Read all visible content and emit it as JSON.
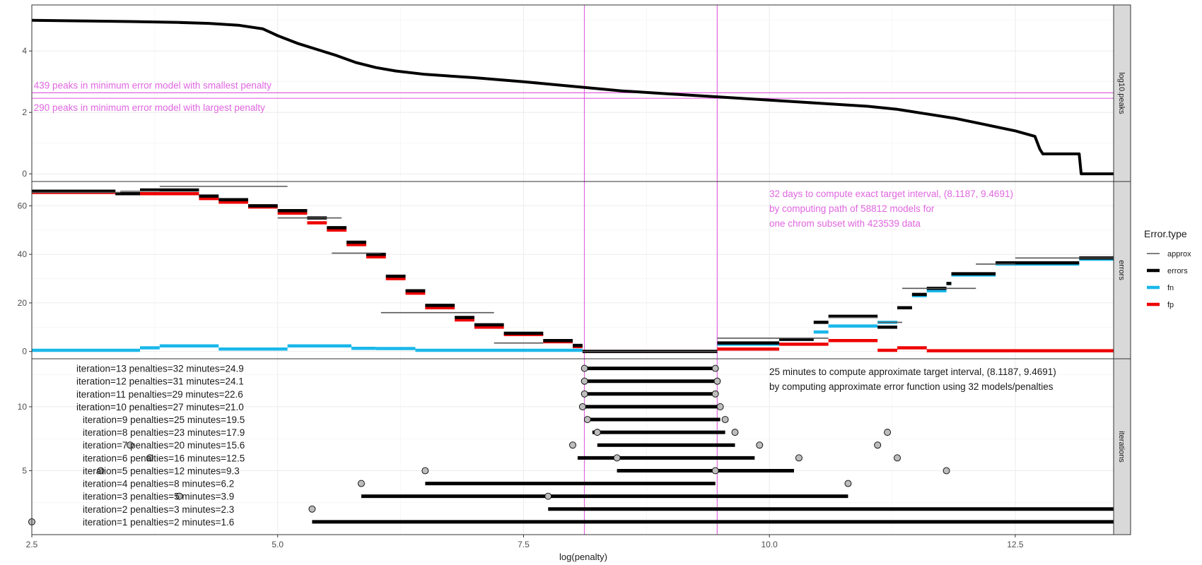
{
  "chart_data": {
    "type": "line",
    "x_axis": {
      "label": "log(penalty)",
      "range": [
        2.5,
        13.5
      ],
      "ticks": [
        2.5,
        5.0,
        7.5,
        10.0,
        12.5
      ],
      "tick_labels": [
        "2.5",
        "5.0",
        "7.5",
        "10.0",
        "12.5"
      ]
    },
    "vlines": [
      8.1187,
      9.4691
    ],
    "colors": {
      "approx": "#555555",
      "errors": "#000000",
      "fn": "#1ab8ea",
      "fp": "#ee0000",
      "annotation": "#e066e0",
      "point_fill": "#bdbdbd"
    },
    "legend": {
      "title": "Error.type",
      "placement": "right",
      "items": [
        {
          "key": "approx",
          "label": "approx"
        },
        {
          "key": "errors",
          "label": "errors"
        },
        {
          "key": "fn",
          "label": "fn"
        },
        {
          "key": "fp",
          "label": "fp"
        }
      ]
    },
    "panels": [
      {
        "strip": "log10.peaks",
        "ylim": [
          -0.25,
          5.5
        ],
        "yticks": [
          0,
          2,
          4
        ],
        "ytick_labels": [
          "0",
          "2",
          "4"
        ],
        "hlines": [
          2.64,
          2.46
        ],
        "annotations": [
          {
            "x": 2.52,
            "y": 2.64,
            "text": "439 peaks in minimum error model with smallest penalty"
          },
          {
            "x": 2.52,
            "y": 2.46,
            "text": "290 peaks in minimum error model with largest penalty"
          }
        ],
        "curve": [
          [
            2.5,
            5.0
          ],
          [
            3.0,
            4.98
          ],
          [
            3.5,
            4.96
          ],
          [
            4.0,
            4.93
          ],
          [
            4.3,
            4.9
          ],
          [
            4.6,
            4.84
          ],
          [
            4.85,
            4.72
          ],
          [
            5.0,
            4.5
          ],
          [
            5.2,
            4.25
          ],
          [
            5.4,
            4.05
          ],
          [
            5.6,
            3.85
          ],
          [
            5.8,
            3.62
          ],
          [
            6.0,
            3.46
          ],
          [
            6.2,
            3.35
          ],
          [
            6.5,
            3.24
          ],
          [
            7.0,
            3.13
          ],
          [
            7.5,
            3.0
          ],
          [
            8.0,
            2.85
          ],
          [
            8.5,
            2.7
          ],
          [
            9.0,
            2.6
          ],
          [
            9.5,
            2.5
          ],
          [
            10.0,
            2.4
          ],
          [
            10.5,
            2.3
          ],
          [
            11.0,
            2.2
          ],
          [
            11.3,
            2.1
          ],
          [
            11.6,
            1.95
          ],
          [
            11.9,
            1.8
          ],
          [
            12.2,
            1.6
          ],
          [
            12.5,
            1.4
          ],
          [
            12.7,
            1.22
          ],
          [
            12.75,
            0.8
          ],
          [
            12.78,
            0.65
          ],
          [
            13.15,
            0.65
          ],
          [
            13.17,
            0.0
          ],
          [
            13.5,
            0.0
          ]
        ]
      },
      {
        "strip": "errors",
        "ylim": [
          -3,
          70
        ],
        "yticks": [
          0,
          20,
          40,
          60
        ],
        "ytick_labels": [
          "0",
          "20",
          "40",
          "60"
        ],
        "note": [
          "32 days to compute exact target interval, (8.1187, 9.4691)",
          "by computing path of 58812 models for",
          "one chrom subset with 423539 data"
        ],
        "fn": [
          [
            2.5,
            3.6,
            0.5
          ],
          [
            3.6,
            3.8,
            1.5
          ],
          [
            3.8,
            4.4,
            2.3
          ],
          [
            4.4,
            5.1,
            1.0
          ],
          [
            5.1,
            5.75,
            2.3
          ],
          [
            5.75,
            6.0,
            1.3
          ],
          [
            6.0,
            6.4,
            1.2
          ],
          [
            6.4,
            8.1,
            0.5
          ],
          [
            8.1,
            9.47,
            0.0
          ],
          [
            9.47,
            10.1,
            3.0
          ],
          [
            10.1,
            10.45,
            5.0
          ],
          [
            10.45,
            10.6,
            8.0
          ],
          [
            10.6,
            11.1,
            10.5
          ],
          [
            11.1,
            11.3,
            12.0
          ],
          [
            11.3,
            11.45,
            18.0
          ],
          [
            11.45,
            11.6,
            23.0
          ],
          [
            11.6,
            11.8,
            25.0
          ],
          [
            11.8,
            11.85,
            28.0
          ],
          [
            11.85,
            12.3,
            31.5
          ],
          [
            12.3,
            13.15,
            36.0
          ],
          [
            13.15,
            13.5,
            38.0
          ]
        ],
        "fp": [
          [
            2.5,
            3.35,
            65.5
          ],
          [
            3.35,
            3.6,
            65.0
          ],
          [
            3.6,
            4.2,
            65.0
          ],
          [
            4.2,
            4.4,
            63.0
          ],
          [
            4.4,
            4.7,
            61.5
          ],
          [
            4.7,
            5.0,
            59.5
          ],
          [
            5.0,
            5.3,
            57.0
          ],
          [
            5.3,
            5.5,
            53.0
          ],
          [
            5.5,
            5.7,
            50.0
          ],
          [
            5.7,
            5.9,
            44.0
          ],
          [
            5.9,
            6.1,
            39.0
          ],
          [
            6.1,
            6.3,
            30.0
          ],
          [
            6.3,
            6.5,
            24.0
          ],
          [
            6.5,
            6.8,
            18.0
          ],
          [
            6.8,
            7.0,
            13.0
          ],
          [
            7.0,
            7.3,
            10.0
          ],
          [
            7.3,
            7.7,
            7.0
          ],
          [
            7.7,
            8.0,
            4.0
          ],
          [
            8.0,
            8.1,
            2.0
          ],
          [
            8.1,
            9.47,
            0.0
          ],
          [
            9.47,
            10.1,
            1.0
          ],
          [
            10.1,
            10.6,
            3.0
          ],
          [
            10.6,
            11.1,
            4.5
          ],
          [
            11.1,
            11.3,
            0.5
          ],
          [
            11.3,
            11.6,
            1.5
          ],
          [
            11.6,
            13.5,
            0.3
          ]
        ],
        "errors": [
          [
            2.5,
            3.35,
            66.0
          ],
          [
            3.35,
            3.6,
            65.0
          ],
          [
            3.6,
            4.2,
            66.5
          ],
          [
            4.2,
            4.4,
            64.0
          ],
          [
            4.4,
            4.7,
            62.5
          ],
          [
            4.7,
            5.0,
            60.0
          ],
          [
            5.0,
            5.3,
            58.0
          ],
          [
            5.3,
            5.5,
            55.0
          ],
          [
            5.5,
            5.7,
            51.0
          ],
          [
            5.7,
            5.9,
            45.0
          ],
          [
            5.9,
            6.1,
            40.0
          ],
          [
            6.1,
            6.3,
            31.0
          ],
          [
            6.3,
            6.5,
            25.0
          ],
          [
            6.5,
            6.8,
            19.0
          ],
          [
            6.8,
            7.0,
            14.0
          ],
          [
            7.0,
            7.3,
            11.0
          ],
          [
            7.3,
            7.7,
            7.5
          ],
          [
            7.7,
            8.0,
            4.5
          ],
          [
            8.0,
            8.1,
            2.5
          ],
          [
            8.1,
            9.47,
            0.0
          ],
          [
            9.47,
            10.1,
            3.5
          ],
          [
            10.1,
            10.45,
            5.0
          ],
          [
            10.45,
            10.6,
            12.0
          ],
          [
            10.6,
            11.1,
            14.5
          ],
          [
            11.1,
            11.3,
            10.0
          ],
          [
            11.3,
            11.45,
            18.0
          ],
          [
            11.45,
            11.6,
            23.5
          ],
          [
            11.6,
            11.8,
            26.0
          ],
          [
            11.8,
            11.85,
            28.0
          ],
          [
            11.85,
            12.3,
            32.0
          ],
          [
            12.3,
            13.15,
            36.5
          ],
          [
            13.15,
            13.5,
            38.5
          ]
        ],
        "approx": [
          [
            2.5,
            3.4,
            65.5
          ],
          [
            3.4,
            3.8,
            66.0
          ],
          [
            3.8,
            5.1,
            68.0
          ],
          [
            5.0,
            5.65,
            55.0
          ],
          [
            5.55,
            6.05,
            40.5
          ],
          [
            6.05,
            7.2,
            16.0
          ],
          [
            7.2,
            7.7,
            3.5
          ],
          [
            8.1,
            9.47,
            0.0
          ],
          [
            9.47,
            10.6,
            5.5
          ],
          [
            10.6,
            11.1,
            14.0
          ],
          [
            11.1,
            11.35,
            12.0
          ],
          [
            11.35,
            12.1,
            26.0
          ],
          [
            12.1,
            12.5,
            36.0
          ],
          [
            12.5,
            13.5,
            38.5
          ]
        ]
      },
      {
        "strip": "iterations",
        "ylim": [
          0,
          13.75
        ],
        "yticks": [
          5,
          10
        ],
        "ytick_labels": [
          "5",
          "10"
        ],
        "note": [
          "25 minutes to compute approximate target interval, (8.1187, 9.4691)",
          "by computing approximate error function using 32 models/penalties"
        ],
        "iterations": [
          {
            "iter": 13,
            "label": "iteration=13      penalties=32    minutes=24.9",
            "interval": [
              8.12,
              9.47
            ],
            "points": [
              8.12,
              9.45
            ]
          },
          {
            "iter": 12,
            "label": "iteration=12      penalties=31    minutes=24.1",
            "interval": [
              8.12,
              9.47
            ],
            "points": [
              8.12,
              9.47
            ]
          },
          {
            "iter": 11,
            "label": "iteration=11      penalties=29    minutes=22.6",
            "interval": [
              8.12,
              9.47
            ],
            "points": [
              8.12,
              9.45
            ]
          },
          {
            "iter": 10,
            "label": "iteration=10      penalties=27    minutes=21.0",
            "interval": [
              8.12,
              9.47
            ],
            "points": [
              8.1,
              9.5
            ]
          },
          {
            "iter": 9,
            "label": "iteration=9      penalties=25    minutes=19.5",
            "interval": [
              8.15,
              9.5
            ],
            "points": [
              8.15,
              9.55
            ]
          },
          {
            "iter": 8,
            "label": "iteration=8      penalties=23    minutes=17.9",
            "interval": [
              8.2,
              9.55
            ],
            "points": [
              8.25,
              9.65,
              11.2
            ]
          },
          {
            "iter": 7,
            "label": "iteration=7      penalties=20    minutes=15.6",
            "interval": [
              8.25,
              9.65
            ],
            "points": [
              3.5,
              8.0,
              9.9,
              11.1
            ]
          },
          {
            "iter": 6,
            "label": "iteration=6      penalties=16    minutes=12.5",
            "interval": [
              8.05,
              9.85
            ],
            "points": [
              3.7,
              8.45,
              10.3,
              11.3
            ]
          },
          {
            "iter": 5,
            "label": "iteration=5      penalties=12      minutes=9.3",
            "interval": [
              8.45,
              10.25
            ],
            "points": [
              3.2,
              6.5,
              9.45,
              11.8
            ]
          },
          {
            "iter": 4,
            "label": "iteration=4      penalties=8      minutes=6.2",
            "interval": [
              6.5,
              9.45
            ],
            "points": [
              5.85,
              10.8
            ]
          },
          {
            "iter": 3,
            "label": "iteration=3      penalties=5      minutes=3.9",
            "interval": [
              5.85,
              10.8
            ],
            "points": [
              4.0,
              7.75
            ]
          },
          {
            "iter": 2,
            "label": "iteration=2      penalties=3      minutes=2.3",
            "interval": [
              7.75,
              13.5
            ],
            "points": [
              5.35
            ]
          },
          {
            "iter": 1,
            "label": "iteration=1      penalties=2      minutes=1.6",
            "interval": [
              5.35,
              13.5
            ],
            "points": [
              2.5
            ]
          }
        ]
      }
    ]
  }
}
